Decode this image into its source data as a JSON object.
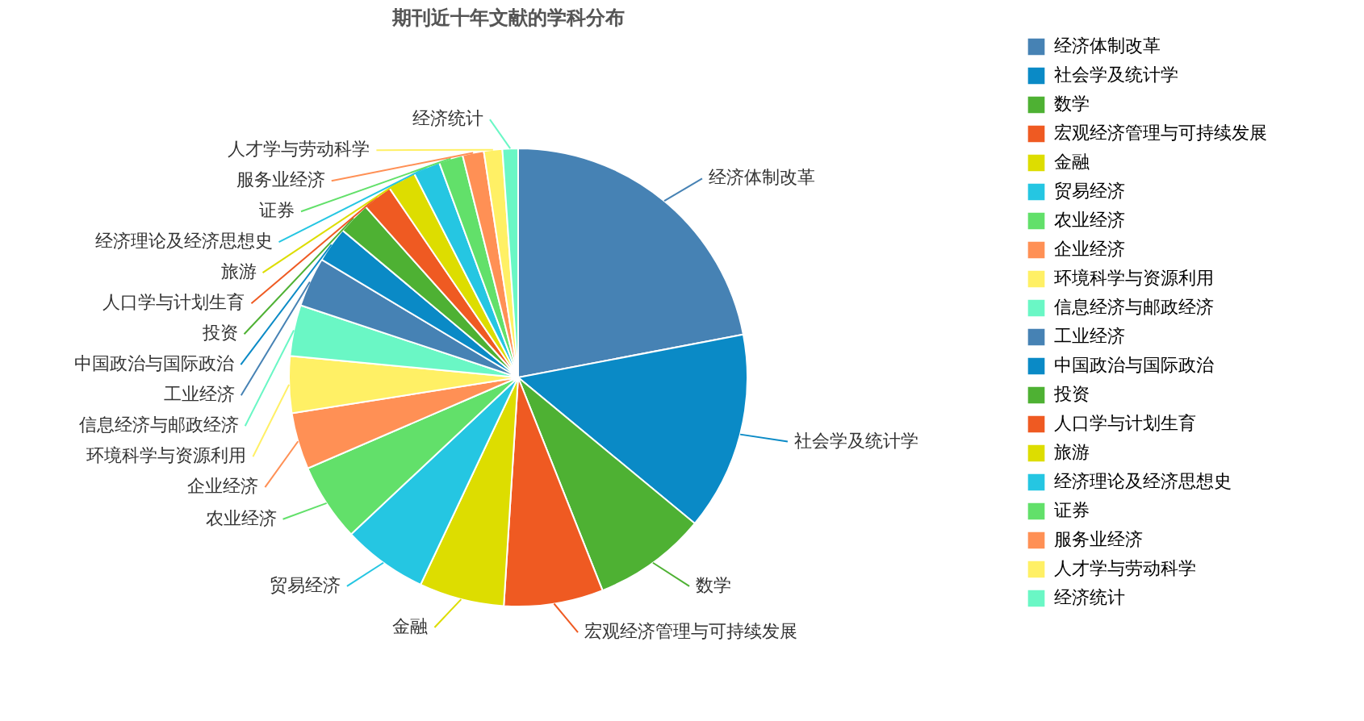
{
  "chart_data": {
    "type": "pie",
    "title": "期刊近十年文献的学科分布",
    "categories": [
      "经济体制改革",
      "社会学及统计学",
      "数学",
      "宏观经济管理与可持续发展",
      "金融",
      "贸易经济",
      "农业经济",
      "企业经济",
      "环境科学与资源利用",
      "信息经济与邮政经济",
      "工业经济",
      "中国政治与国际政治",
      "投资",
      "人口学与计划生育",
      "旅游",
      "经济理论及经济思想史",
      "证券",
      "服务业经济",
      "人才学与劳动科学",
      "经济统计"
    ],
    "values": [
      22,
      14,
      8,
      7,
      6,
      6,
      5.5,
      4,
      4,
      3.6,
      3.5,
      2.5,
      2.3,
      2.1,
      2,
      1.9,
      1.7,
      1.5,
      1.3,
      1.1
    ],
    "colors": [
      "#4682b4",
      "#0a8ac6",
      "#4eb133",
      "#ef5a22",
      "#dddd00",
      "#25c6e2",
      "#62e06a",
      "#ff9055",
      "#fff065",
      "#6af7c5",
      "#4682b4",
      "#0a8ac6",
      "#4eb133",
      "#ef5a22",
      "#dddd00",
      "#25c6e2",
      "#62e06a",
      "#ff9055",
      "#fff065",
      "#6af7c5"
    ],
    "legend": "right"
  }
}
